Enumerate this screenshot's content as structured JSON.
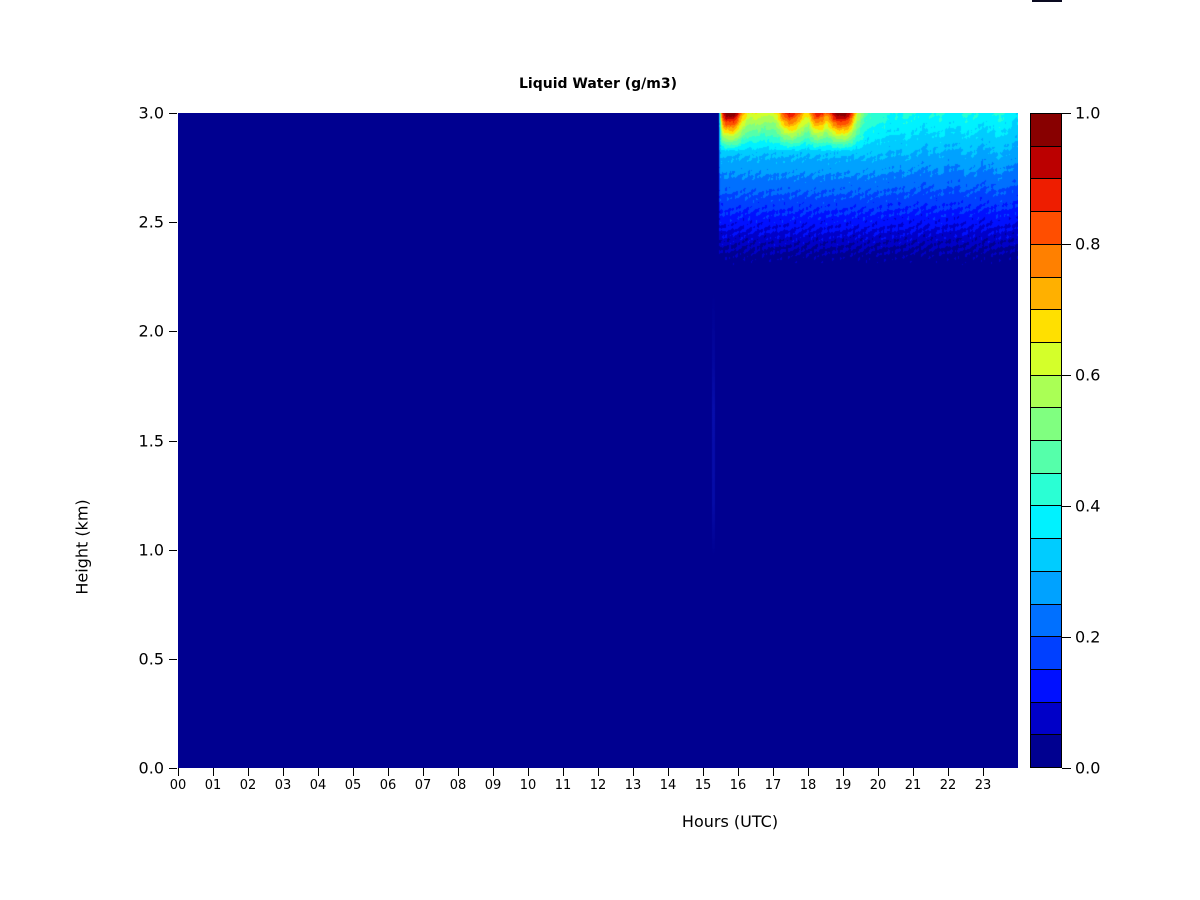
{
  "chart_data": {
    "type": "filled_contour",
    "title": "Liquid Water (g/m3)",
    "xlabel": "Hours (UTC)",
    "ylabel": "Height (km)",
    "x_ticks": [
      "00",
      "01",
      "02",
      "03",
      "04",
      "05",
      "06",
      "07",
      "08",
      "09",
      "10",
      "11",
      "12",
      "13",
      "14",
      "15",
      "16",
      "17",
      "18",
      "19",
      "20",
      "21",
      "22",
      "23"
    ],
    "x_range_hours": [
      0,
      24
    ],
    "y_ticks": [
      "0.0",
      "0.5",
      "1.0",
      "1.5",
      "2.0",
      "2.5",
      "3.0"
    ],
    "y_tick_values": [
      0.0,
      0.5,
      1.0,
      1.5,
      2.0,
      2.5,
      3.0
    ],
    "y_range_km": [
      0,
      3
    ],
    "grid": false,
    "legend_position": "right",
    "colorbar": {
      "ticks": [
        "1.0",
        "0.8",
        "0.6",
        "0.4",
        "0.2",
        "0.0"
      ],
      "tick_values": [
        1.0,
        0.8,
        0.6,
        0.4,
        0.2,
        0.0
      ],
      "level_step": 0.05,
      "n_levels": 20,
      "border_color": "#000000",
      "colors": [
        "#000090",
        "#0000C8",
        "#0010FF",
        "#0040FF",
        "#0070FF",
        "#00A2FF",
        "#00CCFF",
        "#00F2FF",
        "#2AFFD4",
        "#55FFAA",
        "#80FF80",
        "#AAFF55",
        "#D4FF2A",
        "#FFE000",
        "#FFB000",
        "#FF8000",
        "#FF4E00",
        "#EE1D00",
        "#BB0000",
        "#880000"
      ]
    },
    "field": {
      "background_value": 0.0,
      "cloud_band": {
        "onset_hour": 15.43,
        "end_hour": 24,
        "top_km": 3.0,
        "base_depth_km": 0.7,
        "hot_layer_depth_km": 0.18,
        "hot_layer_base_value": 0.42,
        "top_values_by_hour": [
          [
            15.43,
            0.08
          ],
          [
            15.47,
            0.45
          ],
          [
            15.52,
            0.78
          ],
          [
            15.58,
            0.93
          ],
          [
            15.66,
            0.99
          ],
          [
            15.8,
            1.0
          ],
          [
            15.9,
            0.97
          ],
          [
            16.0,
            0.88
          ],
          [
            16.1,
            0.76
          ],
          [
            16.25,
            0.66
          ],
          [
            16.5,
            0.63
          ],
          [
            16.75,
            0.61
          ],
          [
            16.95,
            0.63
          ],
          [
            17.15,
            0.7
          ],
          [
            17.3,
            0.84
          ],
          [
            17.45,
            0.89
          ],
          [
            17.6,
            0.87
          ],
          [
            17.75,
            0.8
          ],
          [
            17.88,
            0.7
          ],
          [
            18.0,
            0.69
          ],
          [
            18.12,
            0.82
          ],
          [
            18.25,
            0.88
          ],
          [
            18.4,
            0.85
          ],
          [
            18.5,
            0.76
          ],
          [
            18.6,
            0.84
          ],
          [
            18.72,
            0.95
          ],
          [
            18.85,
            1.0
          ],
          [
            19.05,
            0.99
          ],
          [
            19.15,
            0.92
          ],
          [
            19.28,
            0.78
          ],
          [
            19.4,
            0.62
          ],
          [
            19.55,
            0.52
          ],
          [
            19.75,
            0.45
          ],
          [
            20.0,
            0.42
          ],
          [
            20.5,
            0.41
          ],
          [
            21.0,
            0.4
          ],
          [
            21.5,
            0.4
          ],
          [
            22.0,
            0.39
          ],
          [
            22.5,
            0.4
          ],
          [
            23.0,
            0.39
          ],
          [
            23.5,
            0.4
          ],
          [
            24.0,
            0.38
          ]
        ]
      },
      "streak": {
        "hour": 15.3,
        "top_km": 1.87,
        "bottom_km": 1.0,
        "value": 0.07
      }
    }
  }
}
